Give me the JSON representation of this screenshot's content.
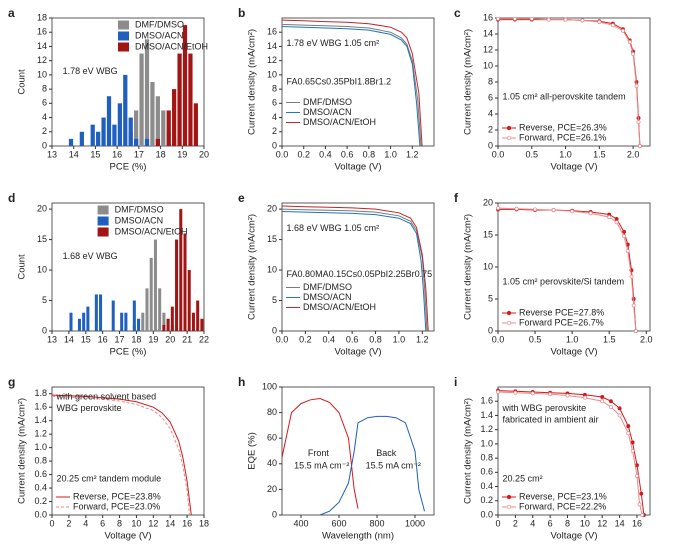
{
  "chart_data": [
    {
      "type": "histogram",
      "panel": "a",
      "xlabel": "PCE (%)",
      "ylabel": "Count",
      "xlim": [
        13,
        20
      ],
      "xticks": [
        13,
        14,
        15,
        16,
        17,
        18,
        19,
        20
      ],
      "ylim": [
        0,
        18
      ],
      "yticks": [
        0,
        2,
        4,
        6,
        8,
        10,
        12,
        14,
        16,
        18
      ],
      "legend": "upper right",
      "annotations": [
        "1.78 eV WBG"
      ],
      "series": [
        {
          "name": "DMF/DMSO",
          "color": "#8c8c8c",
          "bins": [
            16.5,
            16.75,
            17,
            17.25,
            17.5,
            17.75,
            18,
            18.25,
            18.5,
            18.75
          ],
          "values": [
            2,
            5,
            13,
            15,
            9,
            7,
            5,
            2,
            1
          ]
        },
        {
          "name": "DMSO/ACN",
          "color": "#1f5fbf",
          "bins": [
            13.75,
            14,
            14.25,
            14.5,
            14.75,
            15,
            15.25,
            15.5,
            15.75,
            16,
            16.25,
            16.5,
            16.75,
            17,
            17.25,
            17.5
          ],
          "values": [
            1,
            0,
            2,
            0,
            3,
            2,
            4,
            7,
            3,
            6,
            10,
            4,
            1,
            0,
            1
          ]
        },
        {
          "name": "DMSO/ACN/EtOH",
          "color": "#a31515",
          "bins": [
            17.75,
            18,
            18.25,
            18.5,
            18.75,
            19,
            19.25,
            19.5,
            19.75,
            20
          ],
          "values": [
            1,
            0,
            5,
            8,
            13,
            17,
            13,
            6,
            0
          ]
        }
      ]
    },
    {
      "type": "line",
      "panel": "b",
      "xlabel": "Voltage (V)",
      "ylabel": "Current density (mA/cm²)",
      "xlim": [
        0,
        1.4
      ],
      "xticks": [
        {
          "value": 0,
          "label": "0.0"
        },
        0.2,
        0.4,
        0.6,
        0.8,
        {
          "value": 1,
          "label": "1.0"
        },
        1.2
      ],
      "ylim": [
        0,
        18
      ],
      "yticks": [
        0,
        2,
        4,
        6,
        8,
        10,
        12,
        14,
        16
      ],
      "legend": "center left",
      "annotations": [
        "1.78 eV WBG 1.05 cm²",
        "FA0.65Cs0.35PbI1.8Br1.2"
      ],
      "series": [
        {
          "name": "DMF/DMSO",
          "color": "#7a7a7a",
          "x": [
            0,
            0.2,
            0.4,
            0.6,
            0.8,
            1.0,
            1.1,
            1.15,
            1.2,
            1.25,
            1.28
          ],
          "values": [
            17.1,
            17.0,
            16.9,
            16.8,
            16.6,
            16.0,
            15.2,
            14.3,
            12.0,
            6.5,
            0
          ]
        },
        {
          "name": "DMSO/ACN",
          "color": "#1f77b4",
          "x": [
            0,
            0.2,
            0.4,
            0.6,
            0.8,
            1.0,
            1.1,
            1.15,
            1.2,
            1.24,
            1.27
          ],
          "values": [
            16.8,
            16.7,
            16.6,
            16.5,
            16.3,
            15.7,
            14.9,
            14.0,
            11.5,
            6,
            0
          ]
        },
        {
          "name": "DMSO/ACN/EtOH",
          "color": "#c0262d",
          "x": [
            0,
            0.2,
            0.4,
            0.6,
            0.8,
            1.0,
            1.1,
            1.15,
            1.2,
            1.26,
            1.29
          ],
          "values": [
            17.7,
            17.6,
            17.5,
            17.4,
            17.2,
            16.7,
            16.0,
            15.2,
            13.0,
            7.5,
            0
          ]
        }
      ]
    },
    {
      "type": "line",
      "panel": "c",
      "xlabel": "Voltage (V)",
      "ylabel": "Current density (mA/cm²)",
      "xlim": [
        0,
        2.25
      ],
      "xticks": [
        {
          "value": 0,
          "label": "0.0"
        },
        0.5,
        {
          "value": 1,
          "label": "1.0"
        },
        1.5,
        {
          "value": 2,
          "label": "2.0"
        }
      ],
      "ylim": [
        0,
        16
      ],
      "yticks": [
        0,
        2,
        4,
        6,
        8,
        10,
        12,
        14,
        16
      ],
      "legend": "lower left",
      "annotations": [
        "1.05 cm² all-perovskite tandem"
      ],
      "series": [
        {
          "name": "Reverse, PCE=26.3%",
          "color": "#d7191c",
          "marker": "filled",
          "x": [
            0,
            0.25,
            0.5,
            0.75,
            1.0,
            1.25,
            1.5,
            1.7,
            1.85,
            1.95,
            2.0,
            2.05,
            2.08,
            2.1
          ],
          "values": [
            15.8,
            15.8,
            15.8,
            15.8,
            15.8,
            15.7,
            15.6,
            15.3,
            14.6,
            13.2,
            11.8,
            8,
            3.5,
            0
          ]
        },
        {
          "name": "Forward, PCE=26.1%",
          "color": "#e88a8a",
          "marker": "open",
          "x": [
            0,
            0.25,
            0.5,
            0.75,
            1.0,
            1.25,
            1.5,
            1.7,
            1.85,
            1.95,
            2.0,
            2.05,
            2.08,
            2.1
          ],
          "values": [
            15.9,
            15.9,
            15.9,
            15.8,
            15.8,
            15.7,
            15.5,
            15.1,
            14.4,
            13,
            11.5,
            7.5,
            3,
            0
          ]
        }
      ]
    },
    {
      "type": "histogram",
      "panel": "d",
      "xlabel": "PCE (%)",
      "ylabel": "Count",
      "xlim": [
        13,
        22
      ],
      "xticks": [
        13,
        14,
        15,
        16,
        17,
        18,
        19,
        20,
        21,
        22
      ],
      "ylim": [
        0,
        21
      ],
      "yticks": [
        0,
        5,
        10,
        15,
        20
      ],
      "legend": "upper center",
      "annotations": [
        "1.68 eV WBG"
      ],
      "series": [
        {
          "name": "DMF/DMSO",
          "color": "#8c8c8c",
          "bins": [
            17.75,
            18,
            18.25,
            18.5,
            18.75,
            19,
            19.25,
            19.5,
            19.75,
            20,
            20.25
          ],
          "values": [
            1,
            2,
            3,
            7,
            12,
            15,
            7,
            3,
            2,
            1
          ]
        },
        {
          "name": "DMSO/ACN",
          "color": "#1f5fbf",
          "bins": [
            14,
            14.25,
            14.5,
            14.75,
            15,
            15.25,
            15.5,
            15.75,
            16,
            16.25,
            16.5,
            16.75,
            17,
            17.25,
            17.5,
            17.75,
            18,
            18.25,
            18.5,
            18.75,
            19,
            19.25,
            19.5
          ],
          "values": [
            3,
            0,
            2,
            3,
            4,
            0,
            6,
            6,
            0,
            0,
            5,
            0,
            3,
            3,
            0,
            5,
            2,
            0,
            0,
            0,
            0,
            0
          ]
        },
        {
          "name": "DMSO/ACN/EtOH",
          "color": "#a31515",
          "bins": [
            19.5,
            19.75,
            20,
            20.25,
            20.5,
            20.75,
            21,
            21.25,
            21.5,
            21.75,
            22
          ],
          "values": [
            1,
            2,
            4,
            15,
            20,
            16,
            10,
            3,
            5,
            2
          ]
        }
      ]
    },
    {
      "type": "line",
      "panel": "e",
      "xlabel": "Voltage (V)",
      "ylabel": "Current density (mA/cm²)",
      "xlim": [
        0,
        1.3
      ],
      "xticks": [
        {
          "value": 0,
          "label": "0.0"
        },
        0.2,
        0.4,
        0.6,
        0.8,
        {
          "value": 1,
          "label": "1.0"
        },
        1.2
      ],
      "ylim": [
        0,
        21
      ],
      "yticks": [
        0,
        5,
        10,
        15,
        20
      ],
      "legend": "center left",
      "annotations": [
        "1.68 eV WBG 1.05 cm²",
        "FA0.80MA0.15Cs0.05PbI2.25Br0.75"
      ],
      "series": [
        {
          "name": "DMF/DMSO",
          "color": "#7a7a7a",
          "x": [
            0,
            0.2,
            0.4,
            0.6,
            0.8,
            1.0,
            1.1,
            1.15,
            1.2,
            1.22,
            1.24
          ],
          "values": [
            20.0,
            19.9,
            19.8,
            19.7,
            19.5,
            18.9,
            18.0,
            16.5,
            12,
            7,
            0
          ]
        },
        {
          "name": "DMSO/ACN",
          "color": "#1f77b4",
          "x": [
            0,
            0.2,
            0.4,
            0.6,
            0.8,
            1.0,
            1.1,
            1.15,
            1.19,
            1.21,
            1.23
          ],
          "values": [
            19.6,
            19.5,
            19.4,
            19.3,
            19.1,
            18.5,
            17.6,
            16.0,
            11.5,
            6.5,
            0
          ]
        },
        {
          "name": "DMSO/ACN/EtOH",
          "color": "#c0262d",
          "x": [
            0,
            0.2,
            0.4,
            0.6,
            0.8,
            1.0,
            1.1,
            1.15,
            1.2,
            1.23,
            1.25
          ],
          "values": [
            20.5,
            20.4,
            20.3,
            20.2,
            20.0,
            19.4,
            18.5,
            17.0,
            12.5,
            7,
            0
          ]
        }
      ]
    },
    {
      "type": "line",
      "panel": "f",
      "xlabel": "Voltage (V)",
      "ylabel": "Current density (mA/cm²)",
      "xlim": [
        0,
        2.05
      ],
      "xticks": [
        {
          "value": 0,
          "label": "0.0"
        },
        0.5,
        {
          "value": 1,
          "label": "1.0"
        },
        1.5,
        {
          "value": 2,
          "label": "2.0"
        }
      ],
      "ylim": [
        0,
        20
      ],
      "yticks": [
        0,
        5,
        10,
        15,
        20
      ],
      "legend": "lower left",
      "annotations": [
        "1.05 cm² perovskite/Si  tandem"
      ],
      "series": [
        {
          "name": "Reverse PCE=27.8%",
          "color": "#d7191c",
          "marker": "filled",
          "x": [
            0,
            0.25,
            0.5,
            0.75,
            1.0,
            1.25,
            1.5,
            1.6,
            1.7,
            1.75,
            1.8,
            1.83,
            1.86
          ],
          "values": [
            19.0,
            19.0,
            18.9,
            18.9,
            18.8,
            18.6,
            18.2,
            17.5,
            15.5,
            13.5,
            9.5,
            5,
            0
          ]
        },
        {
          "name": "Forward PCE=26.7%",
          "color": "#e88a8a",
          "marker": "open",
          "x": [
            0,
            0.25,
            0.5,
            0.75,
            1.0,
            1.25,
            1.5,
            1.6,
            1.7,
            1.75,
            1.8,
            1.83,
            1.86
          ],
          "values": [
            19.2,
            19.1,
            19.0,
            18.9,
            18.7,
            18.4,
            17.8,
            17.0,
            14.8,
            12.5,
            8.5,
            4,
            0
          ]
        }
      ]
    },
    {
      "type": "line",
      "panel": "g",
      "xlabel": "Voltage (V)",
      "ylabel": "Current density (mA/cm²)",
      "xlim": [
        0,
        18
      ],
      "xticks": [
        0,
        2,
        4,
        6,
        8,
        10,
        12,
        14,
        16,
        18
      ],
      "ylim": [
        0,
        1.9
      ],
      "yticks": [
        {
          "value": 0,
          "label": "0.0"
        },
        0.2,
        0.4,
        0.6,
        0.8,
        {
          "value": 1,
          "label": "1.0"
        },
        1.2,
        1.4,
        1.6,
        1.8
      ],
      "legend": "lower left",
      "annotations": [
        "with green solvent based",
        "WBG perovskite",
        "20.25 cm² tandem module"
      ],
      "series": [
        {
          "name": "Reverse, PCE=23.8%",
          "color": "#d7191c",
          "x": [
            0,
            2,
            4,
            6,
            8,
            10,
            12,
            13,
            14,
            15,
            15.5,
            16,
            16.5
          ],
          "values": [
            1.78,
            1.77,
            1.76,
            1.74,
            1.72,
            1.68,
            1.6,
            1.52,
            1.38,
            1.1,
            0.85,
            0.5,
            0
          ]
        },
        {
          "name": "Forward, PCE=23.0%",
          "color": "#e88a8a",
          "dash": true,
          "x": [
            0,
            2,
            4,
            6,
            8,
            10,
            12,
            13,
            14,
            15,
            15.5,
            16,
            16.3
          ],
          "values": [
            1.76,
            1.75,
            1.74,
            1.72,
            1.69,
            1.64,
            1.55,
            1.45,
            1.28,
            0.98,
            0.72,
            0.36,
            0
          ]
        }
      ]
    },
    {
      "type": "line",
      "panel": "h",
      "xlabel": "Wavelength (nm)",
      "ylabel": "EQE (%)",
      "xlim": [
        300,
        1100
      ],
      "xticks": [
        400,
        600,
        800,
        1000
      ],
      "ylim": [
        0,
        100
      ],
      "yticks": [
        0,
        20,
        40,
        60,
        80,
        100
      ],
      "annotations": [
        "Front",
        "15.5 mA cm⁻²",
        "Back",
        "15.5 mA cm⁻²"
      ],
      "series": [
        {
          "color": "#d7191c",
          "x": [
            300,
            350,
            400,
            450,
            500,
            550,
            600,
            650,
            680,
            700
          ],
          "values": [
            45,
            80,
            87,
            90,
            91,
            88,
            80,
            60,
            20,
            5
          ]
        },
        {
          "color": "#1f5fbf",
          "x": [
            500,
            550,
            600,
            650,
            680,
            700,
            750,
            800,
            850,
            900,
            950,
            1000,
            1020,
            1050
          ],
          "values": [
            0,
            3,
            10,
            25,
            50,
            72,
            76,
            77,
            77,
            76,
            72,
            50,
            20,
            3
          ]
        }
      ]
    },
    {
      "type": "line",
      "panel": "i",
      "xlabel": "Voltage (V)",
      "ylabel": "Current density (mA/cm²)",
      "xlim": [
        0,
        17.5
      ],
      "xticks": [
        0,
        2,
        4,
        6,
        8,
        10,
        12,
        14,
        16
      ],
      "ylim": [
        0,
        1.8
      ],
      "yticks": [
        {
          "value": 0,
          "label": "0.0"
        },
        0.2,
        0.4,
        0.6,
        0.8,
        {
          "value": 1,
          "label": "1.0"
        },
        1.2,
        1.4,
        1.6
      ],
      "legend": "lower left",
      "annotations": [
        "with WBG perovskite",
        "fabricated in ambient air",
        "20.25 cm²"
      ],
      "series": [
        {
          "name": "Reverse, PCE=23.1%",
          "color": "#d7191c",
          "marker": "filled",
          "x": [
            0,
            2,
            4,
            6,
            8,
            10,
            12,
            13,
            14,
            15,
            15.5,
            16,
            16.5,
            16.8
          ],
          "values": [
            1.75,
            1.74,
            1.73,
            1.72,
            1.71,
            1.69,
            1.66,
            1.6,
            1.5,
            1.25,
            1.02,
            0.7,
            0.3,
            0
          ]
        },
        {
          "name": "Forward, PCE=22.2%",
          "color": "#e88a8a",
          "marker": "open",
          "x": [
            0,
            2,
            4,
            6,
            8,
            10,
            12,
            13,
            14,
            15,
            15.5,
            16,
            16.3,
            16.6
          ],
          "values": [
            1.73,
            1.72,
            1.71,
            1.7,
            1.68,
            1.65,
            1.6,
            1.52,
            1.4,
            1.15,
            0.9,
            0.55,
            0.15,
            0
          ]
        }
      ]
    }
  ]
}
